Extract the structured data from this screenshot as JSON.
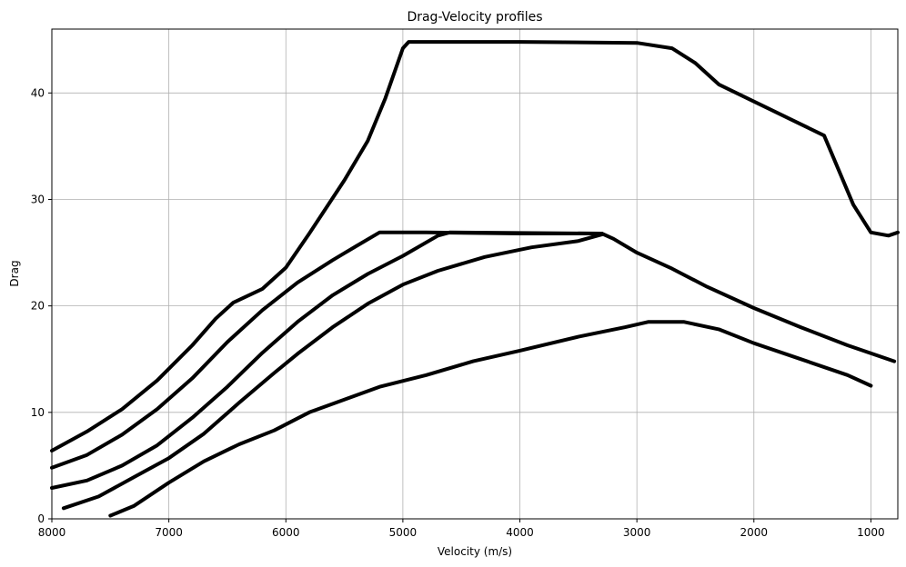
{
  "chart_data": {
    "type": "line",
    "title": "Drag-Velocity profiles",
    "xlabel": "Velocity (m/s)",
    "ylabel": "Drag",
    "xlim": [
      8000,
      770
    ],
    "ylim": [
      0,
      46
    ],
    "x_inverted": true,
    "grid": true,
    "xticks": [
      8000,
      7000,
      6000,
      5000,
      4000,
      3000,
      2000,
      1000
    ],
    "yticks": [
      0,
      10,
      20,
      30,
      40
    ],
    "series": [
      {
        "color": "#000000",
        "points": [
          [
            8000,
            6.4
          ],
          [
            7700,
            8.2
          ],
          [
            7400,
            10.3
          ],
          [
            7100,
            13.0
          ],
          [
            6800,
            16.3
          ],
          [
            6600,
            18.8
          ],
          [
            6450,
            20.3
          ],
          [
            6200,
            21.6
          ],
          [
            6000,
            23.6
          ],
          [
            5800,
            26.8
          ],
          [
            5500,
            31.8
          ],
          [
            5300,
            35.5
          ],
          [
            5150,
            39.5
          ],
          [
            5000,
            44.2
          ],
          [
            4950,
            44.8
          ],
          [
            4000,
            44.8
          ],
          [
            3000,
            44.7
          ],
          [
            2700,
            44.2
          ],
          [
            2500,
            42.8
          ],
          [
            2300,
            40.8
          ],
          [
            2000,
            39.2
          ],
          [
            1700,
            37.6
          ],
          [
            1400,
            36.0
          ],
          [
            1150,
            29.5
          ],
          [
            1000,
            26.9
          ],
          [
            850,
            26.6
          ],
          [
            770,
            26.9
          ]
        ]
      },
      {
        "color": "#000000",
        "points": [
          [
            8000,
            4.8
          ],
          [
            7700,
            6.0
          ],
          [
            7400,
            7.9
          ],
          [
            7100,
            10.3
          ],
          [
            6800,
            13.2
          ],
          [
            6500,
            16.6
          ],
          [
            6200,
            19.6
          ],
          [
            5900,
            22.2
          ],
          [
            5600,
            24.3
          ],
          [
            5400,
            25.6
          ],
          [
            5200,
            26.9
          ],
          [
            4800,
            26.9
          ],
          [
            4000,
            26.8
          ],
          [
            3300,
            26.8
          ],
          [
            3200,
            26.3
          ],
          [
            3000,
            25.0
          ],
          [
            2700,
            23.5
          ],
          [
            2400,
            21.8
          ],
          [
            2000,
            19.8
          ],
          [
            1600,
            18.0
          ],
          [
            1200,
            16.3
          ],
          [
            800,
            14.8
          ]
        ]
      },
      {
        "color": "#000000",
        "points": [
          [
            8000,
            2.9
          ],
          [
            7700,
            3.6
          ],
          [
            7400,
            5.0
          ],
          [
            7100,
            6.9
          ],
          [
            6800,
            9.5
          ],
          [
            6500,
            12.4
          ],
          [
            6200,
            15.6
          ],
          [
            5900,
            18.5
          ],
          [
            5600,
            21.0
          ],
          [
            5300,
            23.0
          ],
          [
            5000,
            24.7
          ],
          [
            4700,
            26.6
          ],
          [
            4600,
            26.9
          ],
          [
            3300,
            26.8
          ]
        ]
      },
      {
        "color": "#000000",
        "points": [
          [
            7900,
            1.0
          ],
          [
            7600,
            2.1
          ],
          [
            7300,
            3.9
          ],
          [
            7000,
            5.7
          ],
          [
            6700,
            8.0
          ],
          [
            6400,
            10.9
          ],
          [
            6100,
            13.7
          ],
          [
            5900,
            15.5
          ],
          [
            5600,
            18.0
          ],
          [
            5300,
            20.2
          ],
          [
            5000,
            22.0
          ],
          [
            4700,
            23.3
          ],
          [
            4300,
            24.6
          ],
          [
            3900,
            25.5
          ],
          [
            3500,
            26.1
          ],
          [
            3300,
            26.7
          ]
        ]
      },
      {
        "color": "#000000",
        "points": [
          [
            7500,
            0.3
          ],
          [
            7300,
            1.2
          ],
          [
            7000,
            3.4
          ],
          [
            6700,
            5.4
          ],
          [
            6400,
            7.0
          ],
          [
            6100,
            8.3
          ],
          [
            5800,
            10.0
          ],
          [
            5500,
            11.2
          ],
          [
            5200,
            12.4
          ],
          [
            4800,
            13.5
          ],
          [
            4400,
            14.8
          ],
          [
            4000,
            15.8
          ],
          [
            3500,
            17.1
          ],
          [
            3100,
            18.0
          ],
          [
            2900,
            18.5
          ],
          [
            2600,
            18.5
          ],
          [
            2300,
            17.8
          ],
          [
            2000,
            16.5
          ],
          [
            1600,
            15.0
          ],
          [
            1200,
            13.5
          ],
          [
            1000,
            12.5
          ]
        ]
      }
    ]
  }
}
